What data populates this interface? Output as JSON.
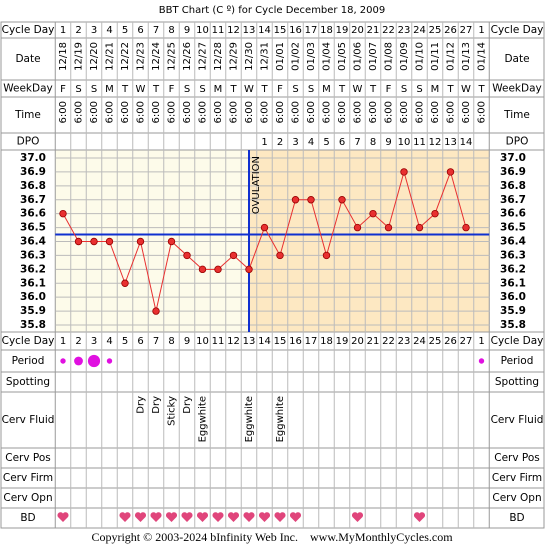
{
  "chart_data": {
    "type": "line",
    "title": "BBT Chart (C º) for Cycle December 18, 2009",
    "row_labels": {
      "cycle_day": "Cycle Day",
      "date": "Date",
      "weekday": "WeekDay",
      "time": "Time",
      "dpo": "DPO",
      "period": "Period",
      "spotting": "Spotting",
      "cerv_fluid": "Cerv Fluid",
      "cerv_pos": "Cerv Pos",
      "cerv_firm": "Cerv Firm",
      "cerv_opn": "Cerv Opn",
      "bd": "BD"
    },
    "cycle_day": [
      1,
      2,
      3,
      4,
      5,
      6,
      7,
      8,
      9,
      10,
      11,
      12,
      13,
      14,
      15,
      16,
      17,
      18,
      19,
      20,
      21,
      22,
      23,
      24,
      25,
      26,
      27,
      1
    ],
    "date": [
      "12/18",
      "12/19",
      "12/20",
      "12/21",
      "12/22",
      "12/23",
      "12/24",
      "12/25",
      "12/26",
      "12/27",
      "12/28",
      "12/29",
      "12/30",
      "12/31",
      "01/01",
      "01/02",
      "01/03",
      "01/04",
      "01/05",
      "01/06",
      "01/07",
      "01/08",
      "01/09",
      "01/10",
      "01/11",
      "01/12",
      "01/13",
      "01/14"
    ],
    "weekday": [
      "F",
      "S",
      "S",
      "M",
      "T",
      "W",
      "T",
      "F",
      "S",
      "S",
      "M",
      "T",
      "W",
      "T",
      "F",
      "S",
      "S",
      "M",
      "T",
      "W",
      "T",
      "F",
      "S",
      "S",
      "M",
      "T",
      "W",
      "T"
    ],
    "time": [
      "6:00",
      "6:00",
      "6:00",
      "6:00",
      "6:00",
      "6:00",
      "6:00",
      "6:00",
      "6:00",
      "6:00",
      "6:00",
      "6:00",
      "6:00",
      "6:00",
      "6:00",
      "6:00",
      "6:00",
      "6:00",
      "6:00",
      "6:00",
      "6:00",
      "6:00",
      "6:00",
      "6:00",
      "6:00",
      "6:00",
      "6:00",
      "6:00"
    ],
    "dpo": [
      null,
      null,
      null,
      null,
      null,
      null,
      null,
      null,
      null,
      null,
      null,
      null,
      null,
      1,
      2,
      3,
      4,
      5,
      6,
      7,
      8,
      9,
      10,
      11,
      12,
      13,
      14,
      null
    ],
    "series": [
      {
        "name": "BBT",
        "color": "#e83030",
        "values": [
          36.6,
          36.4,
          36.4,
          36.4,
          36.1,
          36.4,
          35.9,
          36.4,
          36.3,
          36.2,
          36.2,
          36.3,
          36.2,
          36.5,
          36.3,
          36.7,
          36.7,
          36.3,
          36.7,
          36.5,
          36.6,
          36.5,
          36.9,
          36.5,
          36.6,
          36.9,
          36.5,
          null
        ]
      }
    ],
    "ylim": [
      35.8,
      37.0
    ],
    "yticks": [
      {
        "value": 37.0,
        "label": "37.0"
      },
      36.9,
      36.8,
      36.7,
      36.6,
      36.5,
      36.4,
      36.3,
      36.2,
      36.1,
      {
        "value": 36.0,
        "label": "36.0"
      },
      35.9,
      35.8
    ],
    "coverline": 36.45,
    "ovulation_cycle_day": 13,
    "ovulation_label": "OVULATION",
    "period": [
      1,
      2,
      3,
      1,
      null,
      null,
      null,
      null,
      null,
      null,
      null,
      null,
      null,
      null,
      null,
      null,
      null,
      null,
      null,
      null,
      null,
      null,
      null,
      null,
      null,
      null,
      null,
      1
    ],
    "cerv_fluid": [
      null,
      null,
      null,
      null,
      null,
      "Dry",
      "Dry",
      "Sticky",
      "Dry",
      "Eggwhite",
      null,
      null,
      "Eggwhite",
      null,
      "Eggwhite",
      null,
      null,
      null,
      null,
      null,
      null,
      null,
      null,
      null,
      null,
      null,
      null,
      null
    ],
    "bd": [
      true,
      false,
      false,
      false,
      true,
      true,
      true,
      true,
      true,
      true,
      true,
      true,
      true,
      true,
      true,
      true,
      false,
      false,
      false,
      true,
      false,
      false,
      false,
      true,
      false,
      false,
      false,
      false
    ],
    "footer": "Copyright © 2003-2024 bInfinity Web Inc.    www.MyMonthlyCycles.com"
  }
}
